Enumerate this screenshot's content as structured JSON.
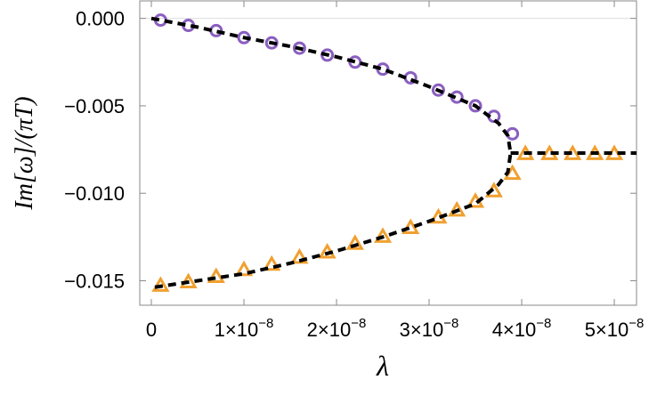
{
  "chart_data": {
    "type": "scatter",
    "y_label": "Im[ω]/(πT)",
    "x_label": "λ",
    "xlim": [
      -1.25e-09,
      5.24e-08
    ],
    "ylim": [
      -0.0164,
      0.001
    ],
    "xticks": [
      0,
      {
        "value": 1e-08,
        "label": "1×10",
        "exponent": "−8"
      },
      {
        "value": 2e-08,
        "label": "2×10",
        "exponent": "−8"
      },
      {
        "value": 3e-08,
        "label": "3×10",
        "exponent": "−8"
      },
      {
        "value": 4e-08,
        "label": "4×10",
        "exponent": "−8"
      },
      {
        "value": 5e-08,
        "label": "5×10",
        "exponent": "−8"
      }
    ],
    "yticks": [
      {
        "value": 0,
        "label": "0.000"
      },
      {
        "value": -0.005,
        "label": "−0.005"
      },
      {
        "value": -0.01,
        "label": "−0.010"
      },
      {
        "value": -0.015,
        "label": "−0.015"
      }
    ],
    "series": [
      {
        "color": "#8a5fc0",
        "marker": "circle",
        "x": [
          1e-09,
          4e-09,
          7e-09,
          1e-08,
          1.3e-08,
          1.6e-08,
          1.9e-08,
          2.2e-08,
          2.5e-08,
          2.8e-08,
          3.1e-08,
          3.3e-08,
          3.5e-08,
          3.7e-08,
          3.9e-08
        ],
        "values": [
          -0.0001,
          -0.0004,
          -0.0007,
          -0.0011,
          -0.0014,
          -0.0017,
          -0.0021,
          -0.0025,
          -0.0029,
          -0.0034,
          -0.0041,
          -0.0045,
          -0.005,
          -0.0056,
          -0.0066
        ]
      },
      {
        "color": "#f0a030",
        "marker": "triangle",
        "x": [
          1e-09,
          4e-09,
          7e-09,
          1e-08,
          1.3e-08,
          1.6e-08,
          1.9e-08,
          2.2e-08,
          2.5e-08,
          2.8e-08,
          3.1e-08,
          3.3e-08,
          3.5e-08,
          3.7e-08,
          3.9e-08,
          4.04e-08,
          4.3e-08,
          4.55e-08,
          4.79e-08,
          5e-08
        ],
        "values": [
          -0.0153,
          -0.0151,
          -0.0148,
          -0.0144,
          -0.0141,
          -0.0137,
          -0.0134,
          -0.0129,
          -0.0125,
          -0.012,
          -0.0114,
          -0.011,
          -0.0105,
          -0.0099,
          -0.0089,
          -0.00777,
          -0.00777,
          -0.00777,
          -0.00777,
          -0.00777
        ]
      },
      {
        "color": "#000000",
        "marker": "dashed-line",
        "x": [
          0,
          5e-09,
          1e-08,
          1.5e-08,
          2e-08,
          2.5e-08,
          3e-08,
          3.5e-08,
          3.75e-08,
          3.85e-08,
          3.88e-08,
          3.85e-08,
          3.75e-08,
          3.5e-08,
          3e-08,
          2.5e-08,
          2e-08,
          1.5e-08,
          1e-08,
          5e-09,
          0,
          null,
          3.88e-08,
          5.24e-08
        ],
        "values": [
          0,
          -0.0005,
          -0.0011,
          -0.0016,
          -0.0022,
          -0.0029,
          -0.0039,
          -0.005,
          -0.006,
          -0.0067,
          -0.0077,
          -0.0088,
          -0.0095,
          -0.0106,
          -0.0116,
          -0.0125,
          -0.0133,
          -0.014,
          -0.0146,
          -0.015,
          -0.0154,
          null,
          -0.0077,
          -0.0077
        ]
      }
    ]
  }
}
